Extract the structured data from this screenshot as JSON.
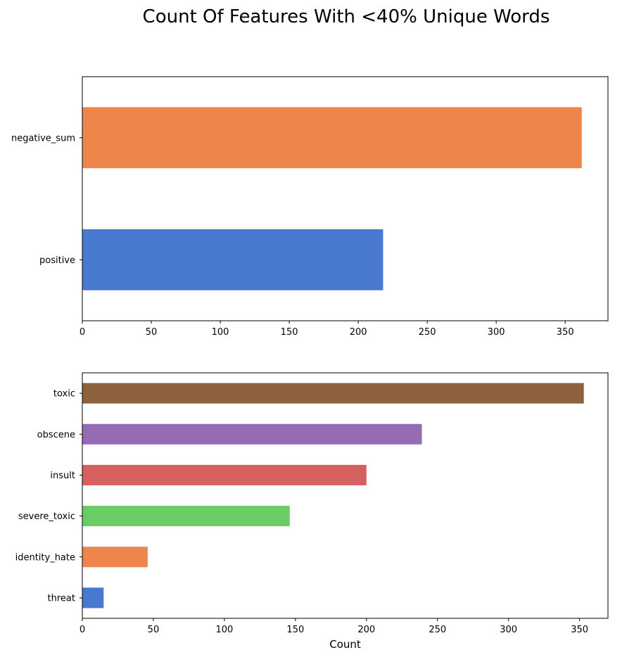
{
  "figure": {
    "title": "Count Of Features With <40% Unique Words"
  },
  "chart_data": [
    {
      "type": "bar",
      "orientation": "horizontal",
      "categories": [
        "positive",
        "negative_sum"
      ],
      "values": [
        218,
        362
      ],
      "colors": [
        "#4878d0",
        "#ee854a"
      ],
      "xlabel": "",
      "ylabel": "",
      "xlim": [
        0,
        381
      ],
      "xticks": [
        0,
        50,
        100,
        150,
        200,
        250,
        300,
        350
      ],
      "grid": false
    },
    {
      "type": "bar",
      "orientation": "horizontal",
      "categories": [
        "threat",
        "identity_hate",
        "severe_toxic",
        "insult",
        "obscene",
        "toxic"
      ],
      "values": [
        15,
        46,
        146,
        200,
        239,
        353
      ],
      "colors": [
        "#4878d0",
        "#ee854a",
        "#6acc64",
        "#d65f5f",
        "#956cb4",
        "#8c613c"
      ],
      "xlabel": "Count",
      "ylabel": "",
      "xlim": [
        0,
        370
      ],
      "xticks": [
        0,
        50,
        100,
        150,
        200,
        250,
        300,
        350
      ],
      "grid": false
    }
  ]
}
